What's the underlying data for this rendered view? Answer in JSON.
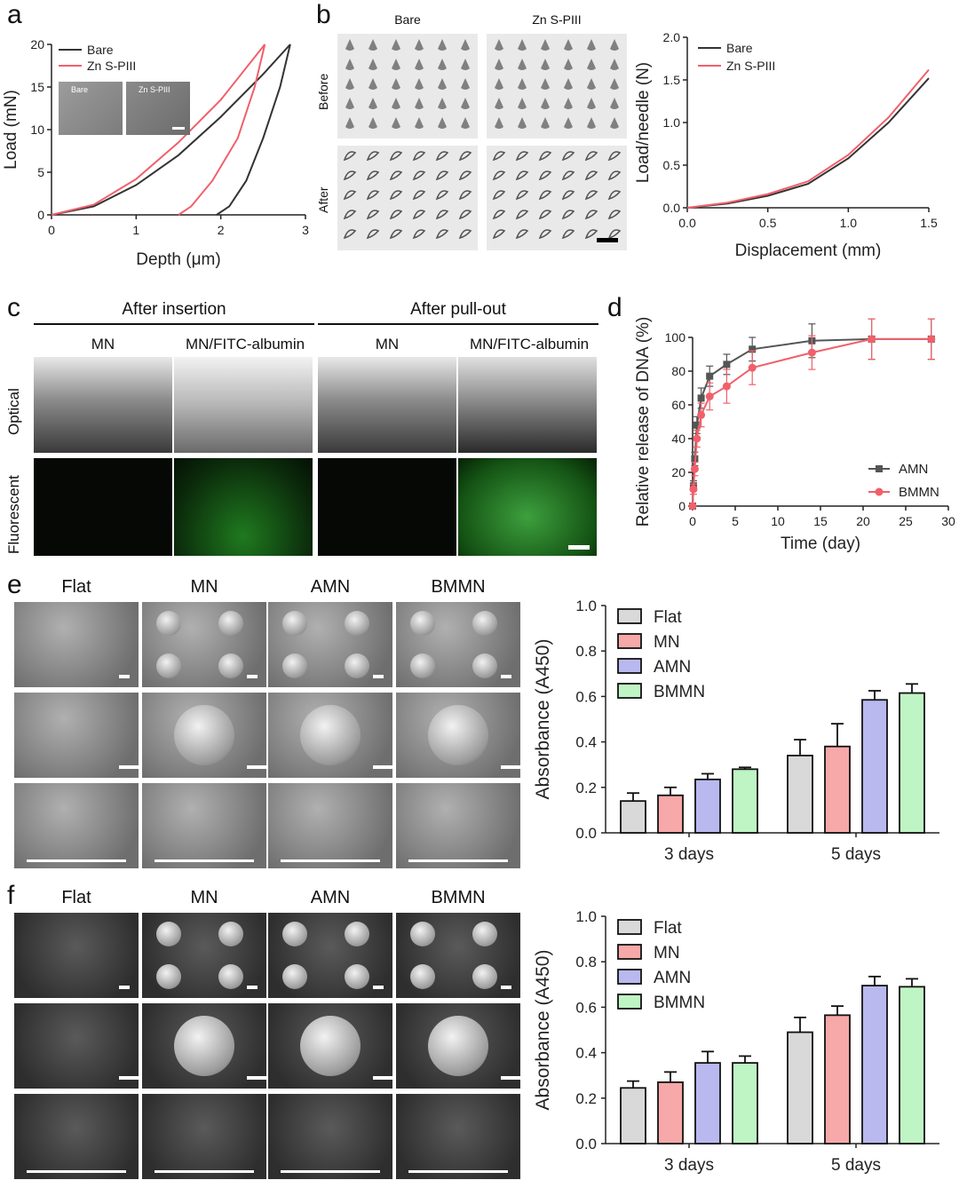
{
  "panels": {
    "a": {
      "label": "a"
    },
    "b": {
      "label": "b",
      "col_bare": "Bare",
      "col_zn": "Zn S-PIII",
      "row_before": "Before",
      "row_after": "After"
    },
    "c": {
      "label": "c",
      "group1": "After insertion",
      "group2": "After pull-out",
      "col_mn": "MN",
      "col_fitc": "MN/FITC-albumin",
      "col_mn2": "MN",
      "col_fitc2": "MN/FITC-albumin",
      "row_optical": "Optical",
      "row_fluo": "Fluorescent"
    },
    "d": {
      "label": "d"
    },
    "e": {
      "label": "e",
      "cols": [
        "Flat",
        "MN",
        "AMN",
        "BMMN"
      ]
    },
    "f": {
      "label": "f",
      "cols": [
        "Flat",
        "MN",
        "AMN",
        "BMMN"
      ]
    },
    "a_inset": {
      "bare": "Bare",
      "zn": "Zn S-PIII"
    }
  },
  "chart_data": [
    {
      "id": "a",
      "type": "line",
      "xlabel": "Depth (μm)",
      "ylabel": "Load (mN)",
      "xlim": [
        0,
        3
      ],
      "ylim": [
        0,
        20
      ],
      "xticks": [
        "0",
        "1",
        "2",
        "3"
      ],
      "yticks": [
        "0",
        "5",
        "10",
        "15",
        "20"
      ],
      "legend": "top-left",
      "series": [
        {
          "name": "Bare",
          "color": "#333333",
          "loading": [
            [
              0,
              0
            ],
            [
              0.5,
              1.0
            ],
            [
              1.0,
              3.5
            ],
            [
              1.5,
              7.0
            ],
            [
              2.0,
              11.5
            ],
            [
              2.5,
              16.5
            ],
            [
              2.82,
              20
            ]
          ],
          "unloading": [
            [
              2.82,
              20
            ],
            [
              2.7,
              15
            ],
            [
              2.5,
              9
            ],
            [
              2.3,
              4
            ],
            [
              2.1,
              1
            ],
            [
              1.95,
              0
            ]
          ]
        },
        {
          "name": "Zn S-PIII",
          "color": "#f0606b",
          "loading": [
            [
              0,
              0
            ],
            [
              0.5,
              1.2
            ],
            [
              1.0,
              4.2
            ],
            [
              1.5,
              8.5
            ],
            [
              2.0,
              13.5
            ],
            [
              2.52,
              20
            ]
          ],
          "unloading": [
            [
              2.52,
              20
            ],
            [
              2.4,
              15
            ],
            [
              2.2,
              9
            ],
            [
              1.9,
              4
            ],
            [
              1.65,
              1
            ],
            [
              1.5,
              0
            ]
          ]
        }
      ]
    },
    {
      "id": "b",
      "type": "line",
      "xlabel": "Displacement (mm)",
      "ylabel": "Load/needle (N)",
      "xlim": [
        0,
        1.5
      ],
      "ylim": [
        0,
        2.0
      ],
      "xticks": [
        "0.0",
        "0.5",
        "1.0",
        "1.5"
      ],
      "yticks": [
        "0.0",
        "0.5",
        "1.0",
        "1.5",
        "2.0"
      ],
      "legend": "top-left",
      "series": [
        {
          "name": "Bare",
          "color": "#333333",
          "points": [
            [
              0,
              0
            ],
            [
              0.25,
              0.05
            ],
            [
              0.5,
              0.14
            ],
            [
              0.75,
              0.28
            ],
            [
              1.0,
              0.58
            ],
            [
              1.25,
              1.0
            ],
            [
              1.5,
              1.52
            ]
          ]
        },
        {
          "name": "Zn S-PIII",
          "color": "#f0606b",
          "points": [
            [
              0,
              0
            ],
            [
              0.25,
              0.06
            ],
            [
              0.5,
              0.16
            ],
            [
              0.75,
              0.31
            ],
            [
              1.0,
              0.62
            ],
            [
              1.25,
              1.06
            ],
            [
              1.5,
              1.62
            ]
          ]
        }
      ]
    },
    {
      "id": "d",
      "type": "line",
      "xlabel": "Time (day)",
      "ylabel": "Relative release of DNA (%)",
      "xlim": [
        0,
        30
      ],
      "ylim": [
        0,
        100
      ],
      "xticks": [
        "0",
        "5",
        "10",
        "15",
        "20",
        "25",
        "30"
      ],
      "yticks": [
        "0",
        "20",
        "40",
        "60",
        "80",
        "100"
      ],
      "legend": "bottom-right",
      "series": [
        {
          "name": "AMN",
          "color": "#555555",
          "marker": "square",
          "x": [
            0,
            0.1,
            0.25,
            0.5,
            1,
            2,
            4,
            7,
            14,
            21,
            28
          ],
          "y": [
            0,
            12,
            28,
            48,
            64,
            77,
            84,
            93,
            98,
            99,
            99
          ],
          "err": [
            0,
            3,
            4,
            5,
            6,
            6,
            6,
            7,
            10,
            12,
            12
          ]
        },
        {
          "name": "BMMN",
          "color": "#f0606b",
          "marker": "circle",
          "x": [
            0,
            0.1,
            0.25,
            0.5,
            1,
            2,
            4,
            7,
            14,
            21,
            28
          ],
          "y": [
            0,
            10,
            22,
            40,
            54,
            65,
            71,
            82,
            91,
            99,
            99
          ],
          "err": [
            0,
            3,
            4,
            5,
            7,
            8,
            10,
            10,
            10,
            12,
            12
          ]
        }
      ]
    },
    {
      "id": "e",
      "type": "bar",
      "ylabel": "Absorbance (A450)",
      "ylim": [
        0,
        1.0
      ],
      "yticks": [
        "0.0",
        "0.2",
        "0.4",
        "0.6",
        "0.8",
        "1.0"
      ],
      "categories": [
        "3 days",
        "5 days"
      ],
      "legend": "top-left",
      "series": [
        {
          "name": "Flat",
          "color": "#d9d9d9",
          "values": [
            0.14,
            0.34
          ],
          "err": [
            0.035,
            0.07
          ]
        },
        {
          "name": "MN",
          "color": "#f7a8a8",
          "values": [
            0.165,
            0.38
          ],
          "err": [
            0.035,
            0.1
          ]
        },
        {
          "name": "AMN",
          "color": "#b9b9f0",
          "values": [
            0.235,
            0.585
          ],
          "err": [
            0.025,
            0.04
          ]
        },
        {
          "name": "BMMN",
          "color": "#bff5c4",
          "values": [
            0.28,
            0.615
          ],
          "err": [
            0.008,
            0.04
          ]
        }
      ]
    },
    {
      "id": "f",
      "type": "bar",
      "ylabel": "Absorbance (A450)",
      "ylim": [
        0,
        1.0
      ],
      "yticks": [
        "0.0",
        "0.2",
        "0.4",
        "0.6",
        "0.8",
        "1.0"
      ],
      "categories": [
        "3 days",
        "5 days"
      ],
      "legend": "top-left",
      "series": [
        {
          "name": "Flat",
          "color": "#d9d9d9",
          "values": [
            0.245,
            0.49
          ],
          "err": [
            0.03,
            0.065
          ]
        },
        {
          "name": "MN",
          "color": "#f7a8a8",
          "values": [
            0.27,
            0.565
          ],
          "err": [
            0.045,
            0.04
          ]
        },
        {
          "name": "AMN",
          "color": "#b9b9f0",
          "values": [
            0.355,
            0.695
          ],
          "err": [
            0.05,
            0.04
          ]
        },
        {
          "name": "BMMN",
          "color": "#bff5c4",
          "values": [
            0.355,
            0.69
          ],
          "err": [
            0.03,
            0.035
          ]
        }
      ]
    }
  ]
}
